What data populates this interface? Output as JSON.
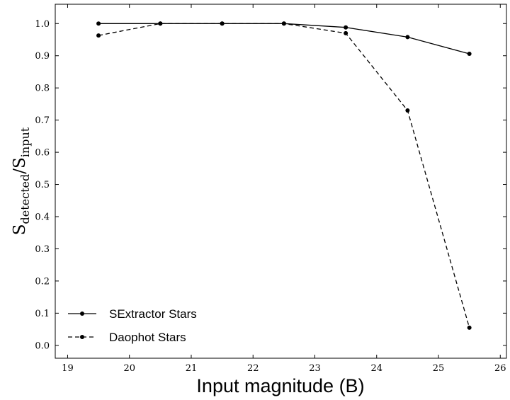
{
  "chart_data": {
    "type": "line",
    "xlabel": "Input magnitude (B)",
    "ylabel": {
      "base1": "S",
      "sub1": "detected",
      "slash": "/",
      "base2": "S",
      "sub2": "input"
    },
    "xlim": [
      18.8,
      26.1
    ],
    "ylim": [
      -0.04,
      1.06
    ],
    "xticks": [
      19,
      20,
      21,
      22,
      23,
      24,
      25,
      26
    ],
    "yticks": [
      0.0,
      0.1,
      0.2,
      0.3,
      0.4,
      0.5,
      0.6,
      0.7,
      0.8,
      0.9,
      1.0
    ],
    "grid": false,
    "legend_position": "lower-left",
    "series": [
      {
        "name": "SExtractor Stars",
        "style": "solid",
        "color": "#000000",
        "x": [
          19.5,
          20.5,
          21.5,
          22.5,
          23.5,
          24.5,
          25.5
        ],
        "y": [
          1.0,
          1.0,
          1.0,
          1.0,
          0.988,
          0.958,
          0.906
        ]
      },
      {
        "name": "Daophot Stars",
        "style": "dashed",
        "color": "#000000",
        "x": [
          19.5,
          20.5,
          21.5,
          22.5,
          23.5,
          24.5,
          25.5
        ],
        "y": [
          0.963,
          1.0,
          1.0,
          1.0,
          0.97,
          0.73,
          0.055
        ]
      }
    ]
  }
}
